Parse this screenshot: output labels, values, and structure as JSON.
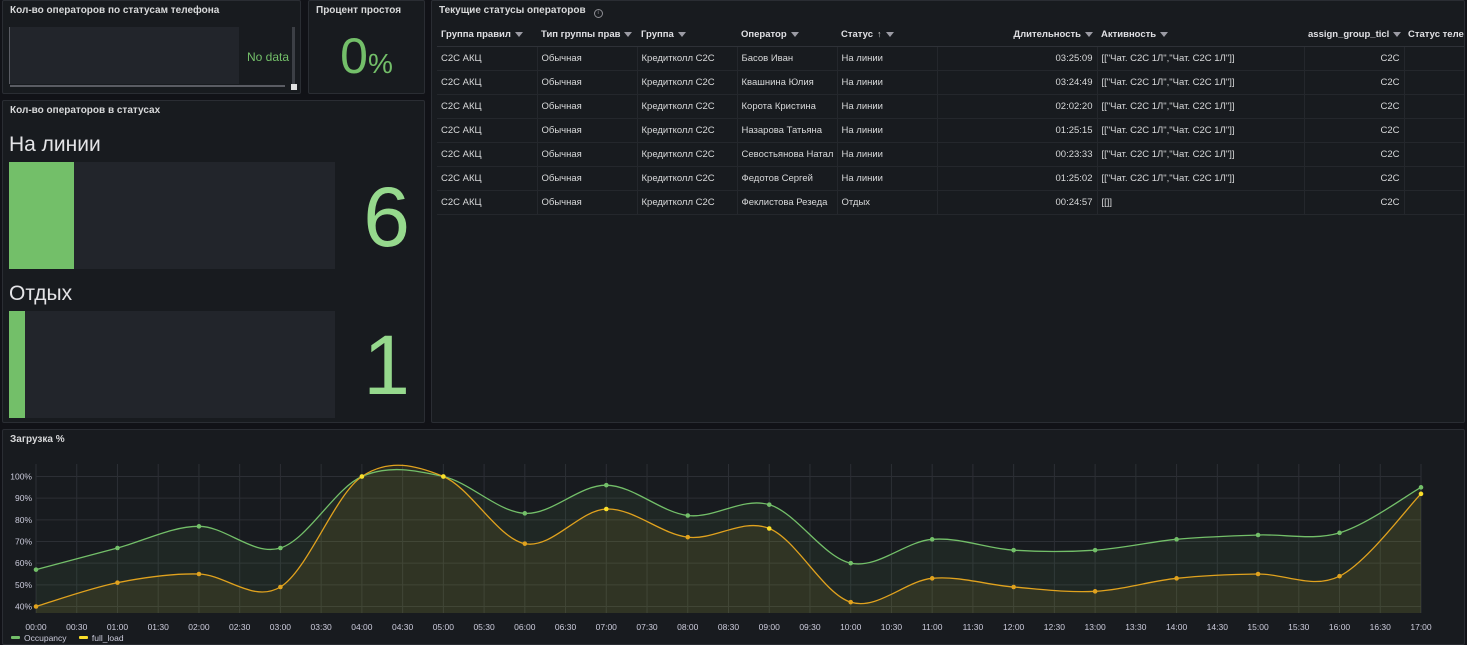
{
  "panels": {
    "phone_status": {
      "title": "Кол-во операторов по статусам телефона",
      "no_data": "No data"
    },
    "idle_percent": {
      "title": "Процент простоя",
      "value": "0",
      "unit": "%"
    },
    "status_count": {
      "title": "Кол-во операторов в статусах",
      "rows": [
        {
          "label": "На линии",
          "value": "6",
          "fill_fraction": 0.02
        },
        {
          "label": "Отдых",
          "value": "1",
          "fill_fraction": 0.005
        }
      ]
    },
    "current_status": {
      "title": "Текущие статусы операторов",
      "info_icon": "info-icon",
      "columns": [
        "Группа правил",
        "Тип группы прав",
        "Группа",
        "Оператор",
        "Статус",
        "Длительность",
        "Активность",
        "assign_group_ticl",
        "Статус теле"
      ],
      "sorted_column": "Статус",
      "rows": [
        [
          "C2C АКЦ",
          "Обычная",
          "Кредитколл С2С",
          "Басов Иван",
          "На линии",
          "03:25:09",
          "[[\"Чат. С2С 1Л\",\"Чат. С2С 1Л\"]]",
          "C2C",
          ""
        ],
        [
          "C2C АКЦ",
          "Обычная",
          "Кредитколл С2С",
          "Квашнина Юлия",
          "На линии",
          "03:24:49",
          "[[\"Чат. С2С 1Л\",\"Чат. С2С 1Л\"]]",
          "C2C",
          ""
        ],
        [
          "C2C АКЦ",
          "Обычная",
          "Кредитколл С2С",
          "Корота Кристина",
          "На линии",
          "02:02:20",
          "[[\"Чат. С2С 1Л\",\"Чат. С2С 1Л\"]]",
          "C2C",
          ""
        ],
        [
          "C2C АКЦ",
          "Обычная",
          "Кредитколл С2С",
          "Назарова Татьяна",
          "На линии",
          "01:25:15",
          "[[\"Чат. С2С 1Л\",\"Чат. С2С 1Л\"]]",
          "C2C",
          ""
        ],
        [
          "C2C АКЦ",
          "Обычная",
          "Кредитколл С2С",
          "Севостьянова Натал",
          "На линии",
          "00:23:33",
          "[[\"Чат. С2С 1Л\",\"Чат. С2С 1Л\"]]",
          "C2C",
          ""
        ],
        [
          "C2C АКЦ",
          "Обычная",
          "Кредитколл С2С",
          "Федотов Сергей",
          "На линии",
          "01:25:02",
          "[[\"Чат. С2С 1Л\",\"Чат. С2С 1Л\"]]",
          "C2C",
          ""
        ],
        [
          "C2C АКЦ",
          "Обычная",
          "Кредитколл С2С",
          "Феклистова Резеда",
          "Отдых",
          "00:24:57",
          "[[]]",
          "C2C",
          ""
        ]
      ]
    },
    "load": {
      "title": "Загрузка %"
    }
  },
  "colors": {
    "occupancy": "#73bf69",
    "full_load": "#fade2a",
    "full_load_line": "#e0a21e",
    "background": "#181b1f",
    "grid": "#2c2f35"
  },
  "chart_data": {
    "type": "line",
    "title": "Загрузка %",
    "x": [
      "00:00",
      "01:00",
      "02:00",
      "03:00",
      "04:00",
      "05:00",
      "06:00",
      "07:00",
      "08:00",
      "09:00",
      "10:00",
      "11:00",
      "12:00",
      "13:00",
      "14:00",
      "15:00",
      "16:00",
      "17:00"
    ],
    "x_ticks": [
      "00:00",
      "00:30",
      "01:00",
      "01:30",
      "02:00",
      "02:30",
      "03:00",
      "03:30",
      "04:00",
      "04:30",
      "05:00",
      "05:30",
      "06:00",
      "06:30",
      "07:00",
      "07:30",
      "08:00",
      "08:30",
      "09:00",
      "09:30",
      "10:00",
      "10:30",
      "11:00",
      "11:30",
      "12:00",
      "12:30",
      "13:00",
      "13:30",
      "14:00",
      "14:30",
      "15:00",
      "15:30",
      "16:00",
      "16:30",
      "17:00"
    ],
    "y_ticks": [
      "40%",
      "50%",
      "60%",
      "70%",
      "80%",
      "90%",
      "100%"
    ],
    "ylim": [
      37,
      103
    ],
    "series": [
      {
        "name": "Occupancy",
        "values": [
          57,
          67,
          77,
          67,
          100,
          100,
          83,
          96,
          82,
          87,
          60,
          71,
          66,
          66,
          71,
          73,
          74,
          95
        ]
      },
      {
        "name": "full_load",
        "values": [
          40,
          51,
          55,
          49,
          100,
          100,
          69,
          85,
          72,
          76,
          42,
          53,
          49,
          47,
          53,
          55,
          54,
          92
        ]
      }
    ],
    "legend_position": "bottom-left",
    "grid": true,
    "area_fill": true
  }
}
